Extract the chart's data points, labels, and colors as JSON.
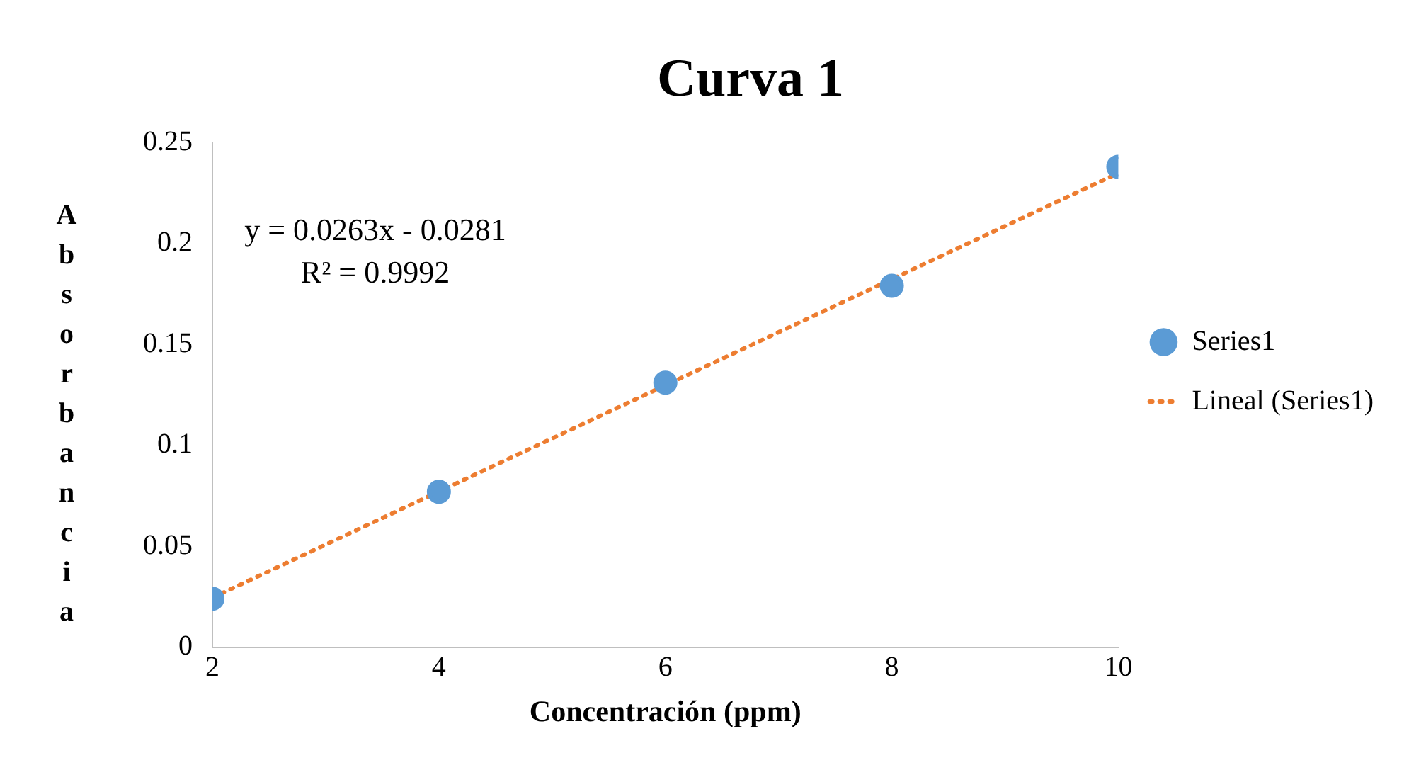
{
  "chart_data": {
    "type": "scatter",
    "title": "Curva 1",
    "xlabel": "Concentración (ppm)",
    "ylabel": "Absorbancia",
    "xlim": [
      2,
      10
    ],
    "xticks": [
      2,
      4,
      6,
      8,
      10
    ],
    "ylim": [
      0,
      0.25
    ],
    "yticks": [
      0,
      0.05,
      0.1,
      0.15,
      0.2,
      0.25
    ],
    "grid": false,
    "legend": "right",
    "annotations": [
      "y = 0.0263x - 0.0281",
      "R² = 0.9992"
    ],
    "series": [
      {
        "name": "Series1",
        "type": "scatter",
        "color": "#5b9bd5",
        "marker": "circle",
        "x": [
          2,
          4,
          6,
          8,
          10
        ],
        "values": [
          0.024,
          0.077,
          0.131,
          0.179,
          0.238
        ]
      },
      {
        "name": "Lineal (Series1)",
        "type": "line",
        "color": "#ed7d31",
        "marker": "none",
        "line_style": "dotted",
        "x": [
          2,
          10
        ],
        "values": [
          0.0245,
          0.2349
        ]
      }
    ]
  }
}
